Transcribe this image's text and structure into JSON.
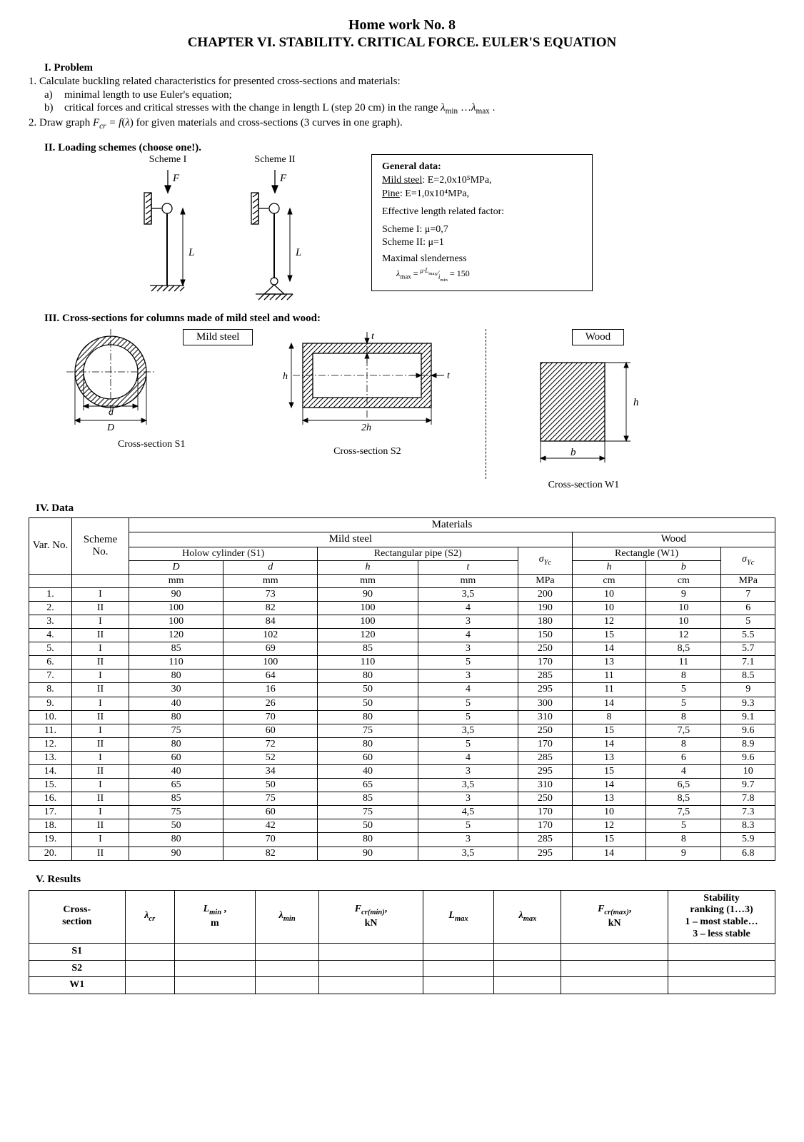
{
  "title": "Home work No. 8",
  "subtitle": "CHAPTER VI. STABILITY. CRITICAL FORCE. EULER'S EQUATION",
  "section1": {
    "heading": "I. Problem",
    "line1": "1. Calculate buckling related characteristics for presented cross-sections and materials:",
    "a": "minimal length to use Euler's equation;",
    "b_prefix": "critical forces and critical stresses with the change in length L (step 20 cm) in the range ",
    "b_range": "λ_min …λ_max .",
    "line2_prefix": "2. Draw graph ",
    "line2_formula": "F_cr = f(λ)",
    "line2_suffix": " for given materials and cross-sections (3 curves in one graph)."
  },
  "section2": {
    "heading": "II.  Loading schemes (choose one!).",
    "scheme1_label": "Scheme I",
    "scheme2_label": "Scheme II",
    "F": "F",
    "L": "L",
    "general": {
      "heading": "General data:",
      "mild": "Mild steel",
      "mild_val": ": E=2,0x10⁵MPa,",
      "pine": "Pine",
      "pine_val": ": E=1,0x10⁴MPa,",
      "eff": "Effective length related factor:",
      "s1": "Scheme I:  μ=0,7",
      "s2": "Scheme II: μ=1",
      "max_sl": "Maximal slenderness",
      "lambda_formula": "λ_max = μ·L_max / i_min = 150"
    }
  },
  "section3": {
    "heading": "III. Cross-sections for columns made of mild steel and wood:",
    "mild_label": "Mild steel",
    "wood_label": "Wood",
    "s1_caption": "Cross-section S1",
    "s2_caption": "Cross-section S2",
    "w1_caption": "Cross-section W1",
    "d_lower": "d",
    "D_upper": "D",
    "t": "t",
    "h": "h",
    "two_h": "2h",
    "b": "b"
  },
  "section4": {
    "heading": "IV. Data",
    "materials": "Materials",
    "mild_steel": "Mild steel",
    "wood": "Wood",
    "var_no": "Var. No.",
    "scheme_no": "Scheme No.",
    "s1_name": "Holow cylinder (S1)",
    "s2_name": "Rectangular pipe (S2)",
    "w1_name": "Rectangle (W1)",
    "D": "D",
    "d": "d",
    "h": "h",
    "t": "t",
    "b": "b",
    "sigma": "σ_Yc",
    "mm": "mm",
    "cm": "cm",
    "MPa": "MPa",
    "rows": [
      [
        "1.",
        "I",
        "90",
        "73",
        "90",
        "3,5",
        "200",
        "10",
        "9",
        "7"
      ],
      [
        "2.",
        "II",
        "100",
        "82",
        "100",
        "4",
        "190",
        "10",
        "10",
        "6"
      ],
      [
        "3.",
        "I",
        "100",
        "84",
        "100",
        "3",
        "180",
        "12",
        "10",
        "5"
      ],
      [
        "4.",
        "II",
        "120",
        "102",
        "120",
        "4",
        "150",
        "15",
        "12",
        "5.5"
      ],
      [
        "5.",
        "I",
        "85",
        "69",
        "85",
        "3",
        "250",
        "14",
        "8,5",
        "5.7"
      ],
      [
        "6.",
        "II",
        "110",
        "100",
        "110",
        "5",
        "170",
        "13",
        "11",
        "7.1"
      ],
      [
        "7.",
        "I",
        "80",
        "64",
        "80",
        "3",
        "285",
        "11",
        "8",
        "8.5"
      ],
      [
        "8.",
        "II",
        "30",
        "16",
        "50",
        "4",
        "295",
        "11",
        "5",
        "9"
      ],
      [
        "9.",
        "I",
        "40",
        "26",
        "50",
        "5",
        "300",
        "14",
        "5",
        "9.3"
      ],
      [
        "10.",
        "II",
        "80",
        "70",
        "80",
        "5",
        "310",
        "8",
        "8",
        "9.1"
      ],
      [
        "11.",
        "I",
        "75",
        "60",
        "75",
        "3,5",
        "250",
        "15",
        "7,5",
        "9.6"
      ],
      [
        "12.",
        "II",
        "80",
        "72",
        "80",
        "5",
        "170",
        "14",
        "8",
        "8.9"
      ],
      [
        "13.",
        "I",
        "60",
        "52",
        "60",
        "4",
        "285",
        "13",
        "6",
        "9.6"
      ],
      [
        "14.",
        "II",
        "40",
        "34",
        "40",
        "3",
        "295",
        "15",
        "4",
        "10"
      ],
      [
        "15.",
        "I",
        "65",
        "50",
        "65",
        "3,5",
        "310",
        "14",
        "6,5",
        "9.7"
      ],
      [
        "16.",
        "II",
        "85",
        "75",
        "85",
        "3",
        "250",
        "13",
        "8,5",
        "7.8"
      ],
      [
        "17.",
        "I",
        "75",
        "60",
        "75",
        "4,5",
        "170",
        "10",
        "7,5",
        "7.3"
      ],
      [
        "18.",
        "II",
        "50",
        "42",
        "50",
        "5",
        "170",
        "12",
        "5",
        "8.3"
      ],
      [
        "19.",
        "I",
        "80",
        "70",
        "80",
        "3",
        "285",
        "15",
        "8",
        "5.9"
      ],
      [
        "20.",
        "II",
        "90",
        "82",
        "90",
        "3,5",
        "295",
        "14",
        "9",
        "6.8"
      ]
    ]
  },
  "section5": {
    "heading": "V. Results",
    "cols": {
      "cs": "Cross-section",
      "lambda_cr": "λ_cr",
      "Lmin": "L_min , m",
      "lambda_min": "λ_min",
      "Fcrmin": "F_cr(min), kN",
      "Lmax": "L_max",
      "lambda_max": "λ_max",
      "Fcrmax": "F_cr(max), kN",
      "stability": "Stability ranking (1…3) 1 – most stable… 3 – less stable"
    },
    "rows": [
      "S1",
      "S2",
      "W1"
    ]
  }
}
